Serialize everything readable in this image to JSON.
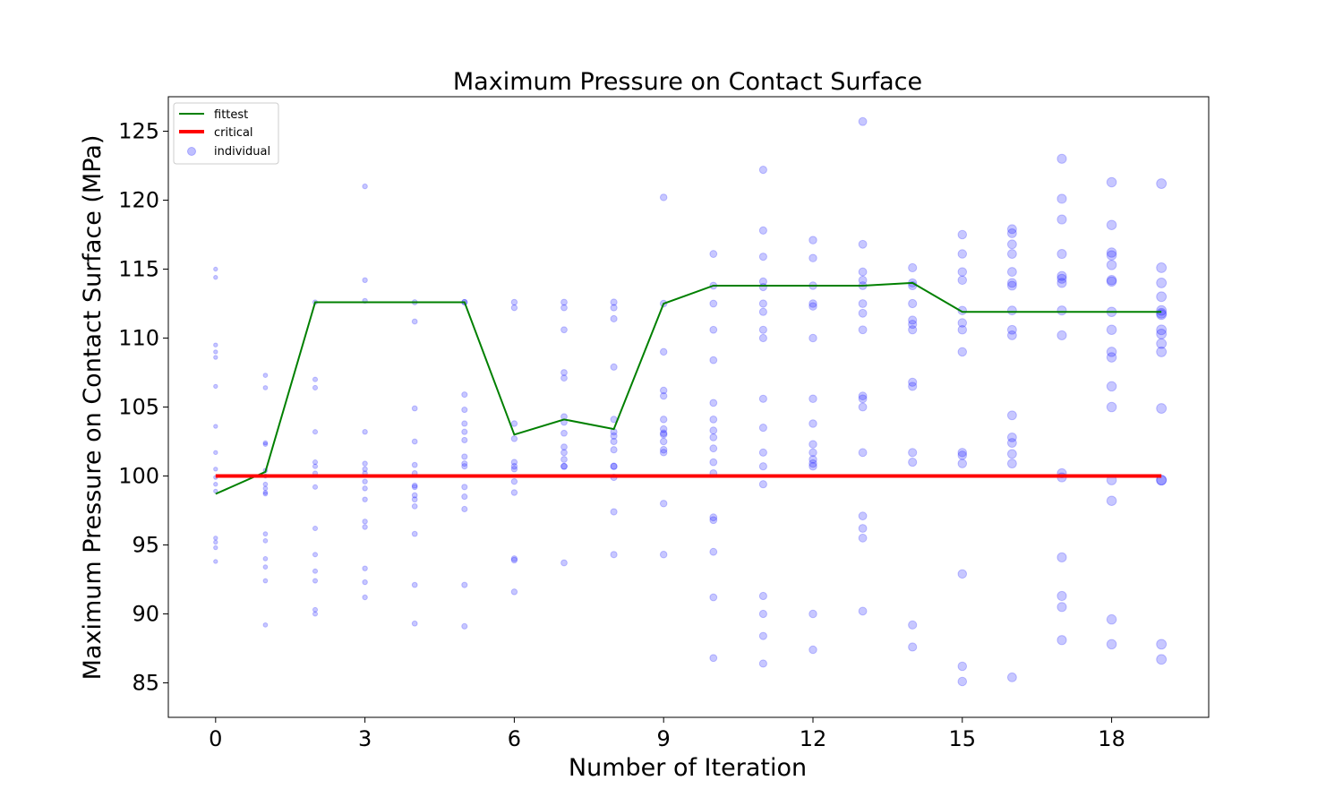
{
  "chart_data": {
    "type": "scatter",
    "title": "Maximum Pressure on Contact Surface",
    "xlabel": "Number of Iteration",
    "ylabel": "Maximum Pressure on Contact Surface (MPa)",
    "xlim": [
      -0.95,
      19.95
    ],
    "ylim": [
      82.5,
      127.5
    ],
    "xticks": [
      0,
      3,
      6,
      9,
      12,
      15,
      18
    ],
    "yticks": [
      85,
      90,
      95,
      100,
      105,
      110,
      115,
      120,
      125
    ],
    "grid": false,
    "legend": {
      "placement": "top-left",
      "entries": [
        "fittest",
        "critical",
        "individual"
      ]
    },
    "colors": {
      "fittest": "#008000",
      "critical": "#ff0000",
      "individual": "#0000ff"
    },
    "series": [
      {
        "name": "fittest",
        "kind": "line",
        "x": [
          0,
          1,
          2,
          3,
          4,
          5,
          6,
          7,
          8,
          9,
          10,
          11,
          12,
          13,
          14,
          15,
          16,
          17,
          18,
          19
        ],
        "y": [
          98.7,
          100.3,
          112.6,
          112.6,
          112.6,
          112.6,
          103.0,
          104.1,
          103.4,
          112.5,
          113.8,
          113.8,
          113.8,
          113.8,
          114.0,
          111.9,
          111.9,
          111.9,
          111.9,
          111.9
        ]
      },
      {
        "name": "critical",
        "kind": "line",
        "x": [
          0,
          19
        ],
        "y": [
          100,
          100
        ]
      },
      {
        "name": "individual",
        "kind": "scatter",
        "points": [
          {
            "x": 0,
            "y": [
              115.0,
              114.4,
              109.5,
              109.0,
              108.6,
              106.5,
              103.6,
              101.7,
              100.5,
              99.9,
              99.4,
              98.9,
              95.5,
              95.2,
              94.8,
              93.8
            ]
          },
          {
            "x": 1,
            "y": [
              107.3,
              106.4,
              102.4,
              102.3,
              100.4,
              100.0,
              99.4,
              99.1,
              98.8,
              98.7,
              95.8,
              95.3,
              94.0,
              93.4,
              92.4,
              89.2
            ]
          },
          {
            "x": 2,
            "y": [
              112.6,
              107.0,
              106.4,
              103.2,
              101.0,
              100.7,
              100.2,
              99.2,
              96.2,
              94.3,
              93.1,
              92.4,
              90.3,
              90.0
            ]
          },
          {
            "x": 3,
            "y": [
              121.0,
              114.2,
              112.7,
              103.2,
              100.9,
              100.5,
              100.2,
              99.6,
              99.1,
              98.3,
              96.7,
              96.3,
              93.3,
              92.3,
              91.2
            ]
          },
          {
            "x": 4,
            "y": [
              112.6,
              111.2,
              104.9,
              102.5,
              100.8,
              100.2,
              99.3,
              99.2,
              98.6,
              98.3,
              97.8,
              95.8,
              92.1,
              89.3
            ]
          },
          {
            "x": 5,
            "y": [
              112.6,
              112.6,
              105.9,
              104.8,
              103.8,
              103.2,
              102.6,
              101.4,
              100.9,
              100.7,
              99.2,
              98.5,
              97.6,
              92.1,
              89.1
            ]
          },
          {
            "x": 6,
            "y": [
              112.6,
              112.2,
              103.8,
              102.7,
              101.0,
              100.7,
              100.5,
              99.6,
              98.8,
              94.0,
              93.9,
              91.6
            ]
          },
          {
            "x": 7,
            "y": [
              112.6,
              112.2,
              110.6,
              107.5,
              107.1,
              104.3,
              103.9,
              103.1,
              102.1,
              101.7,
              101.2,
              100.7,
              100.7,
              93.7
            ]
          },
          {
            "x": 8,
            "y": [
              112.6,
              112.2,
              111.4,
              107.9,
              104.1,
              103.2,
              102.9,
              102.5,
              101.9,
              100.7,
              100.7,
              99.9,
              97.4,
              94.3
            ]
          },
          {
            "x": 9,
            "y": [
              120.2,
              112.5,
              109.0,
              106.2,
              105.8,
              104.1,
              103.4,
              103.1,
              103.0,
              102.5,
              101.9,
              101.7,
              98.0,
              94.3
            ]
          },
          {
            "x": 10,
            "y": [
              116.1,
              113.8,
              112.5,
              110.6,
              108.4,
              105.3,
              104.1,
              103.3,
              102.8,
              102.0,
              101.0,
              100.2,
              97.0,
              96.8,
              94.5,
              91.2,
              86.8
            ]
          },
          {
            "x": 11,
            "y": [
              122.2,
              117.8,
              115.9,
              114.1,
              113.7,
              112.5,
              111.9,
              110.6,
              110.0,
              105.6,
              103.5,
              101.7,
              100.7,
              99.4,
              91.3,
              90.0,
              88.4,
              86.4
            ]
          },
          {
            "x": 12,
            "y": [
              117.1,
              115.8,
              113.8,
              112.5,
              112.3,
              110.0,
              105.6,
              103.8,
              102.3,
              101.7,
              101.2,
              100.9,
              100.7,
              90.0,
              87.4
            ]
          },
          {
            "x": 13,
            "y": [
              125.7,
              116.8,
              114.8,
              114.2,
              113.8,
              112.5,
              111.8,
              110.6,
              105.8,
              105.6,
              105.0,
              101.7,
              97.1,
              96.2,
              95.5,
              90.2
            ]
          },
          {
            "x": 14,
            "y": [
              115.1,
              114.0,
              113.8,
              112.5,
              111.3,
              111.0,
              110.6,
              106.8,
              106.5,
              101.7,
              101.0,
              89.2,
              87.6
            ]
          },
          {
            "x": 15,
            "y": [
              117.5,
              116.1,
              114.8,
              114.2,
              112.0,
              111.1,
              110.6,
              109.0,
              101.7,
              101.5,
              100.9,
              92.9,
              86.2,
              85.1
            ]
          },
          {
            "x": 16,
            "y": [
              117.9,
              117.6,
              116.8,
              116.1,
              114.8,
              114.0,
              113.8,
              112.0,
              110.6,
              110.2,
              104.4,
              102.8,
              102.4,
              101.6,
              100.9,
              85.4
            ]
          },
          {
            "x": 17,
            "y": [
              123.0,
              120.1,
              118.6,
              116.1,
              114.5,
              114.3,
              114.0,
              112.0,
              110.2,
              100.2,
              99.9,
              94.1,
              91.3,
              90.5,
              88.1
            ]
          },
          {
            "x": 18,
            "y": [
              121.3,
              118.2,
              116.2,
              116.0,
              115.3,
              114.2,
              114.1,
              111.9,
              110.6,
              109.0,
              108.6,
              106.5,
              105.0,
              99.7,
              98.2,
              89.6,
              87.8
            ]
          },
          {
            "x": 19,
            "y": [
              121.2,
              115.1,
              114.0,
              113.0,
              112.0,
              111.8,
              111.7,
              110.6,
              110.3,
              109.6,
              109.0,
              104.9,
              99.7,
              99.7,
              87.8,
              86.7
            ]
          }
        ]
      }
    ]
  }
}
